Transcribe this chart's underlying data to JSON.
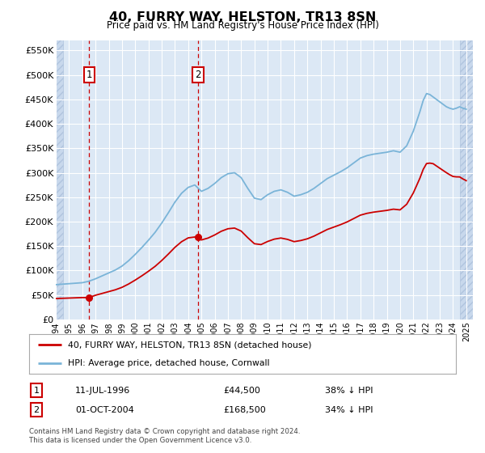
{
  "title": "40, FURRY WAY, HELSTON, TR13 8SN",
  "subtitle": "Price paid vs. HM Land Registry's House Price Index (HPI)",
  "xlim_start": 1994.0,
  "xlim_end": 2025.5,
  "ylim_min": 0,
  "ylim_max": 570000,
  "yticks": [
    0,
    50000,
    100000,
    150000,
    200000,
    250000,
    300000,
    350000,
    400000,
    450000,
    500000,
    550000
  ],
  "ytick_labels": [
    "£0",
    "£50K",
    "£100K",
    "£150K",
    "£200K",
    "£250K",
    "£300K",
    "£350K",
    "£400K",
    "£450K",
    "£500K",
    "£550K"
  ],
  "xticks": [
    1994,
    1995,
    1996,
    1997,
    1998,
    1999,
    2000,
    2001,
    2002,
    2003,
    2004,
    2005,
    2006,
    2007,
    2008,
    2009,
    2010,
    2011,
    2012,
    2013,
    2014,
    2015,
    2016,
    2017,
    2018,
    2019,
    2020,
    2021,
    2022,
    2023,
    2024,
    2025
  ],
  "sale1_x": 1996.53,
  "sale1_y": 44500,
  "sale2_x": 2004.75,
  "sale2_y": 168500,
  "hpi_color": "#7ab4d8",
  "price_color": "#cc0000",
  "legend_label1": "40, FURRY WAY, HELSTON, TR13 8SN (detached house)",
  "legend_label2": "HPI: Average price, detached house, Cornwall",
  "annot1_label": "1",
  "annot1_date": "11-JUL-1996",
  "annot1_price": "£44,500",
  "annot1_hpi": "38% ↓ HPI",
  "annot2_label": "2",
  "annot2_date": "01-OCT-2004",
  "annot2_price": "£168,500",
  "annot2_hpi": "34% ↓ HPI",
  "footnote": "Contains HM Land Registry data © Crown copyright and database right 2024.\nThis data is licensed under the Open Government Licence v3.0.",
  "bg_color": "#dce8f5",
  "hatch_bg_color": "#c8d8ec",
  "grid_color": "#ffffff"
}
